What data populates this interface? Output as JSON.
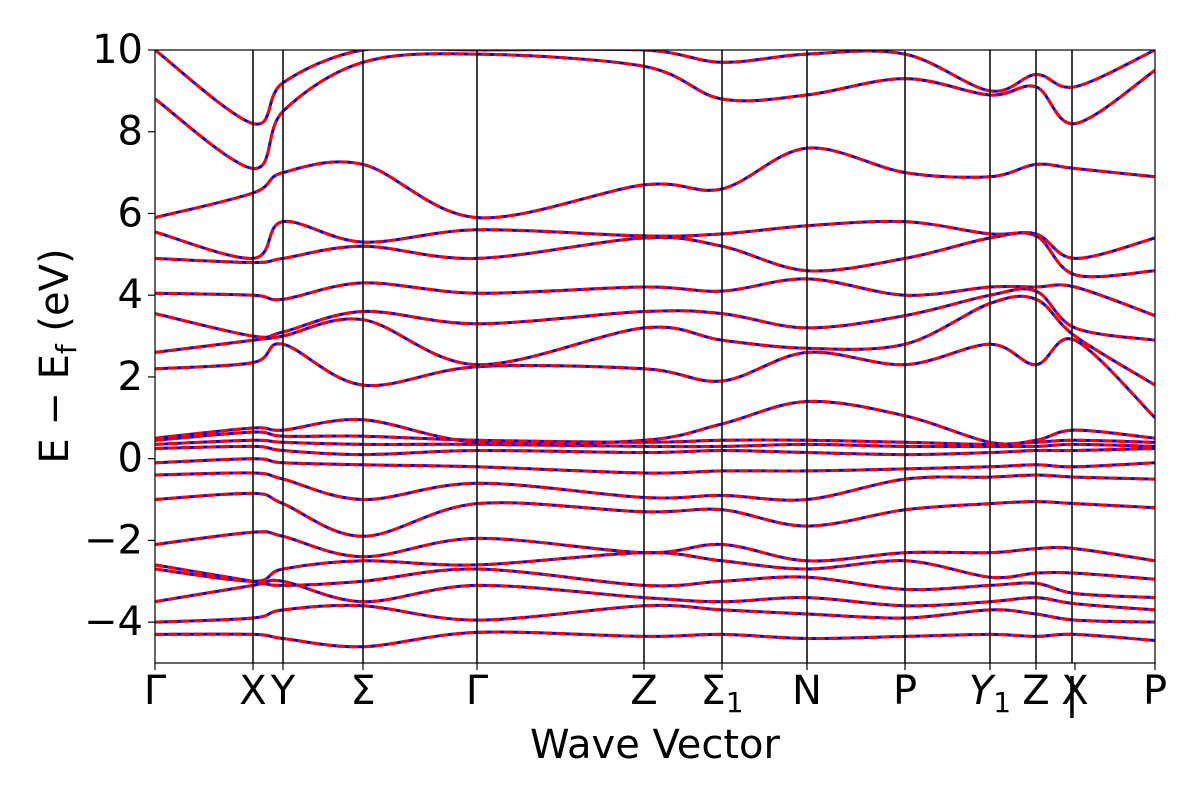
{
  "chart_data": {
    "type": "line",
    "title": "",
    "xlabel": "Wave Vector",
    "ylabel": "E − E_f (eV)",
    "ylabel_parts": {
      "main": "E − E",
      "sub": "f",
      "unit": " (eV)"
    },
    "ylim": [
      -5,
      10
    ],
    "yticks": [
      -4,
      -2,
      0,
      2,
      4,
      6,
      8,
      10
    ],
    "ytick_labels": [
      "−4",
      "−2",
      "0",
      "2",
      "4",
      "6",
      "8",
      "10"
    ],
    "xlim": [
      0,
      10
    ],
    "kpoints": [
      {
        "label": "Γ",
        "sub": "",
        "x": 0.0
      },
      {
        "label": "X",
        "sub": "",
        "x": 0.98
      },
      {
        "label": "Y",
        "sub": "",
        "x": 1.28
      },
      {
        "label": "Σ",
        "sub": "",
        "x": 2.08
      },
      {
        "label": "Γ",
        "sub": "",
        "x": 3.22
      },
      {
        "label": "Z",
        "sub": "",
        "x": 4.89
      },
      {
        "label": "Σ",
        "sub": "1",
        "x": 5.67
      },
      {
        "label": "N",
        "sub": "",
        "x": 6.52
      },
      {
        "label": "P",
        "sub": "",
        "x": 7.5
      },
      {
        "label": "Y",
        "sub": "1",
        "x": 8.35
      },
      {
        "label": "Z",
        "sub": "",
        "x": 8.81
      },
      {
        "label": "X",
        "sub": "",
        "x": 9.2
      },
      {
        "label": "P",
        "sub": "",
        "x": 10.0
      }
    ],
    "path_break": {
      "label": "|",
      "x": 9.17
    },
    "grid": false,
    "legend": "none",
    "series": [
      {
        "style": "solid",
        "color": "#0000ff"
      },
      {
        "style": "dashed",
        "color": "#ff0000"
      }
    ],
    "bands": [
      {
        "x": [
          0,
          0.98,
          1.28,
          2.08,
          3.22,
          4.89,
          5.67,
          6.52,
          7.5,
          8.35,
          8.81,
          9.2,
          10
        ],
        "y": [
          -4.3,
          -4.3,
          -4.4,
          -4.6,
          -4.25,
          -4.35,
          -4.3,
          -4.4,
          -4.35,
          -4.3,
          -4.35,
          -4.3,
          -4.45
        ]
      },
      {
        "x": [
          0,
          0.98,
          1.28,
          2.08,
          3.22,
          4.89,
          5.67,
          6.52,
          7.5,
          8.35,
          8.81,
          9.2,
          10
        ],
        "y": [
          -4.0,
          -3.9,
          -3.7,
          -3.6,
          -3.95,
          -3.6,
          -3.7,
          -3.8,
          -3.9,
          -3.7,
          -3.8,
          -3.95,
          -4.0
        ]
      },
      {
        "x": [
          0,
          0.98,
          1.28,
          2.08,
          3.22,
          4.89,
          5.67,
          6.52,
          7.5,
          8.35,
          8.81,
          9.2,
          10
        ],
        "y": [
          -3.5,
          -3.1,
          -3.0,
          -3.5,
          -3.1,
          -3.4,
          -3.5,
          -3.4,
          -3.6,
          -3.5,
          -3.4,
          -3.55,
          -3.7
        ]
      },
      {
        "x": [
          0,
          0.98,
          1.28,
          2.08,
          3.22,
          4.89,
          5.67,
          6.52,
          7.5,
          8.35,
          8.81,
          9.2,
          10
        ],
        "y": [
          -2.6,
          -3.0,
          -3.1,
          -3.0,
          -2.7,
          -3.1,
          -3.0,
          -2.9,
          -3.2,
          -3.1,
          -3.05,
          -3.3,
          -3.4
        ]
      },
      {
        "x": [
          0,
          0.98,
          1.28,
          2.08,
          3.22,
          4.89,
          5.67,
          6.52,
          7.5,
          8.35,
          8.81,
          9.2,
          10
        ],
        "y": [
          -2.7,
          -3.0,
          -2.7,
          -2.5,
          -2.6,
          -2.3,
          -2.5,
          -2.7,
          -2.5,
          -2.9,
          -2.8,
          -2.8,
          -2.95
        ]
      },
      {
        "x": [
          0,
          0.98,
          1.28,
          2.08,
          3.22,
          4.89,
          5.67,
          6.52,
          7.5,
          8.35,
          8.81,
          9.2,
          10
        ],
        "y": [
          -2.1,
          -1.8,
          -1.9,
          -2.4,
          -1.95,
          -2.3,
          -2.1,
          -2.5,
          -2.3,
          -2.3,
          -2.2,
          -2.2,
          -2.5
        ]
      },
      {
        "x": [
          0,
          0.98,
          1.28,
          2.08,
          3.22,
          4.89,
          5.67,
          6.52,
          7.5,
          8.35,
          8.81,
          9.2,
          10
        ],
        "y": [
          -1.0,
          -0.85,
          -1.1,
          -1.9,
          -1.1,
          -1.3,
          -1.25,
          -1.65,
          -1.25,
          -1.1,
          -1.05,
          -1.1,
          -1.2
        ]
      },
      {
        "x": [
          0,
          0.98,
          1.28,
          2.08,
          3.22,
          4.89,
          5.67,
          6.52,
          7.5,
          8.35,
          8.81,
          9.2,
          10
        ],
        "y": [
          -0.4,
          -0.35,
          -0.5,
          -1.0,
          -0.6,
          -0.95,
          -0.9,
          -1.0,
          -0.5,
          -0.45,
          -0.4,
          -0.45,
          -0.5
        ]
      },
      {
        "x": [
          0,
          0.98,
          1.28,
          2.08,
          3.22,
          4.89,
          5.67,
          6.52,
          7.5,
          8.35,
          8.81,
          9.2,
          10
        ],
        "y": [
          -0.1,
          0.0,
          -0.1,
          -0.15,
          -0.2,
          -0.35,
          -0.3,
          -0.3,
          -0.25,
          -0.2,
          -0.15,
          -0.2,
          -0.1
        ]
      },
      {
        "x": [
          0,
          0.98,
          1.28,
          2.08,
          3.22,
          4.89,
          5.67,
          6.52,
          7.5,
          8.35,
          8.81,
          9.2,
          10
        ],
        "y": [
          0.25,
          0.3,
          0.2,
          0.1,
          0.2,
          0.15,
          0.2,
          0.15,
          0.1,
          0.15,
          0.2,
          0.2,
          0.25
        ]
      },
      {
        "x": [
          0,
          0.98,
          1.28,
          2.08,
          3.22,
          4.89,
          5.67,
          6.52,
          7.5,
          8.35,
          8.81,
          9.2,
          10
        ],
        "y": [
          0.35,
          0.45,
          0.4,
          0.35,
          0.35,
          0.3,
          0.3,
          0.35,
          0.3,
          0.3,
          0.3,
          0.35,
          0.3
        ]
      },
      {
        "x": [
          0,
          0.98,
          1.28,
          2.08,
          3.22,
          4.89,
          5.67,
          6.52,
          7.5,
          8.35,
          8.81,
          9.2,
          10
        ],
        "y": [
          0.45,
          0.65,
          0.55,
          0.55,
          0.45,
          0.4,
          0.45,
          0.45,
          0.4,
          0.35,
          0.4,
          0.45,
          0.4
        ]
      },
      {
        "x": [
          0,
          0.98,
          1.28,
          2.08,
          3.22,
          4.89,
          5.67,
          6.52,
          7.5,
          8.35,
          8.81,
          9.2,
          10
        ],
        "y": [
          0.5,
          0.75,
          0.7,
          0.95,
          0.4,
          0.45,
          0.85,
          1.4,
          1.05,
          0.4,
          0.45,
          0.7,
          0.5
        ]
      },
      {
        "x": [
          0,
          0.98,
          1.28,
          2.08,
          3.22,
          4.89,
          5.67,
          6.52,
          7.5,
          8.35,
          8.81,
          9.2,
          10
        ],
        "y": [
          2.2,
          2.35,
          2.8,
          1.8,
          2.25,
          2.2,
          1.9,
          2.6,
          2.3,
          2.8,
          2.3,
          2.9,
          1.0
        ]
      },
      {
        "x": [
          0,
          0.98,
          1.28,
          2.08,
          3.22,
          4.89,
          5.67,
          6.52,
          7.5,
          8.35,
          8.81,
          9.2,
          10
        ],
        "y": [
          2.6,
          2.9,
          3.0,
          3.4,
          2.3,
          3.2,
          2.9,
          2.7,
          2.8,
          3.8,
          3.9,
          3.0,
          1.8
        ]
      },
      {
        "x": [
          0,
          0.98,
          1.28,
          2.08,
          3.22,
          4.89,
          5.67,
          6.52,
          7.5,
          8.35,
          8.81,
          9.2,
          10
        ],
        "y": [
          3.55,
          3.0,
          3.1,
          3.6,
          3.3,
          3.6,
          3.55,
          3.2,
          3.5,
          4.0,
          4.1,
          3.2,
          2.9
        ]
      },
      {
        "x": [
          0,
          0.98,
          1.28,
          2.08,
          3.22,
          4.89,
          5.67,
          6.52,
          7.5,
          8.35,
          8.81,
          9.2,
          10
        ],
        "y": [
          4.05,
          4.0,
          3.9,
          4.3,
          4.05,
          4.2,
          4.1,
          4.4,
          4.0,
          4.2,
          4.2,
          4.2,
          3.5
        ]
      },
      {
        "x": [
          0,
          0.98,
          1.28,
          2.08,
          3.22,
          4.89,
          5.67,
          6.52,
          7.5,
          8.35,
          8.81,
          9.2,
          10
        ],
        "y": [
          4.9,
          4.8,
          4.9,
          5.2,
          4.9,
          5.4,
          5.2,
          4.6,
          4.9,
          5.4,
          5.45,
          4.5,
          4.6
        ]
      },
      {
        "x": [
          0,
          0.98,
          1.28,
          2.08,
          3.22,
          4.89,
          5.67,
          6.52,
          7.5,
          8.35,
          8.81,
          9.2,
          10
        ],
        "y": [
          5.55,
          4.9,
          5.8,
          5.3,
          5.6,
          5.45,
          5.5,
          5.7,
          5.8,
          5.5,
          5.5,
          4.9,
          5.4
        ]
      },
      {
        "x": [
          0,
          0.98,
          1.28,
          2.08,
          3.22,
          4.89,
          5.67,
          6.52,
          7.5,
          8.35,
          8.81,
          9.2,
          10
        ],
        "y": [
          5.9,
          6.5,
          7.0,
          7.2,
          5.9,
          6.7,
          6.6,
          7.6,
          7.0,
          6.9,
          7.2,
          7.1,
          6.9
        ]
      },
      {
        "x": [
          0,
          0.98,
          1.28,
          2.08,
          3.22,
          4.89,
          5.67,
          6.52,
          7.5,
          8.35,
          8.81,
          9.2,
          10
        ],
        "y": [
          8.8,
          7.1,
          8.5,
          9.7,
          9.9,
          9.6,
          8.8,
          8.9,
          9.3,
          8.9,
          9.1,
          8.2,
          9.5
        ]
      },
      {
        "x": [
          0,
          0.98,
          1.28,
          2.08,
          3.22,
          4.89,
          5.67,
          6.52,
          7.5,
          8.35,
          8.81,
          9.2,
          10
        ],
        "y": [
          10.0,
          8.2,
          9.2,
          10.0,
          10.0,
          10.0,
          9.7,
          9.9,
          9.9,
          9.0,
          9.4,
          9.1,
          10.0
        ]
      }
    ]
  }
}
